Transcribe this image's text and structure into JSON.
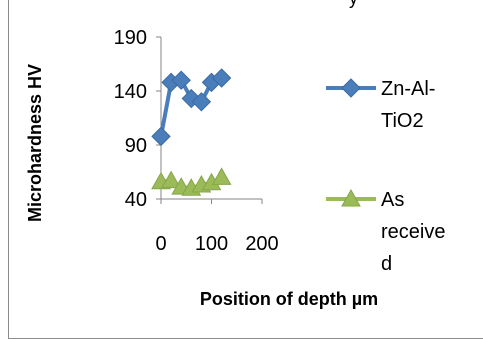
{
  "chart_data": {
    "type": "line",
    "xlabel": "Position of depth µm",
    "ylabel": "Microhardness HV",
    "xlim": [
      0,
      200
    ],
    "ylim": [
      40,
      190
    ],
    "xticks": [
      "0",
      "100",
      "200"
    ],
    "yticks": [
      "40",
      "90",
      "140",
      "190"
    ],
    "x_tick_values": [
      0,
      100,
      200
    ],
    "y_tick_values": [
      40,
      90,
      140,
      190
    ],
    "legend_position": "right",
    "series": [
      {
        "name": "Zn-Al-TiO2",
        "legend_lines": [
          "Zn-Al-",
          "TiO2"
        ],
        "color": "#4a7ebb",
        "marker": "diamond",
        "points": [
          {
            "x": 0,
            "y": 98
          },
          {
            "x": 20,
            "y": 148
          },
          {
            "x": 40,
            "y": 150
          },
          {
            "x": 60,
            "y": 133
          },
          {
            "x": 80,
            "y": 130
          },
          {
            "x": 100,
            "y": 148
          },
          {
            "x": 120,
            "y": 152
          }
        ]
      },
      {
        "name": "As received",
        "legend_lines": [
          "As",
          "receive",
          "d"
        ],
        "color": "#9bbb59",
        "marker": "triangle",
        "points": [
          {
            "x": 0,
            "y": 56
          },
          {
            "x": 20,
            "y": 57
          },
          {
            "x": 40,
            "y": 51
          },
          {
            "x": 60,
            "y": 50
          },
          {
            "x": 80,
            "y": 53
          },
          {
            "x": 100,
            "y": 55
          },
          {
            "x": 120,
            "y": 60
          }
        ]
      }
    ]
  }
}
